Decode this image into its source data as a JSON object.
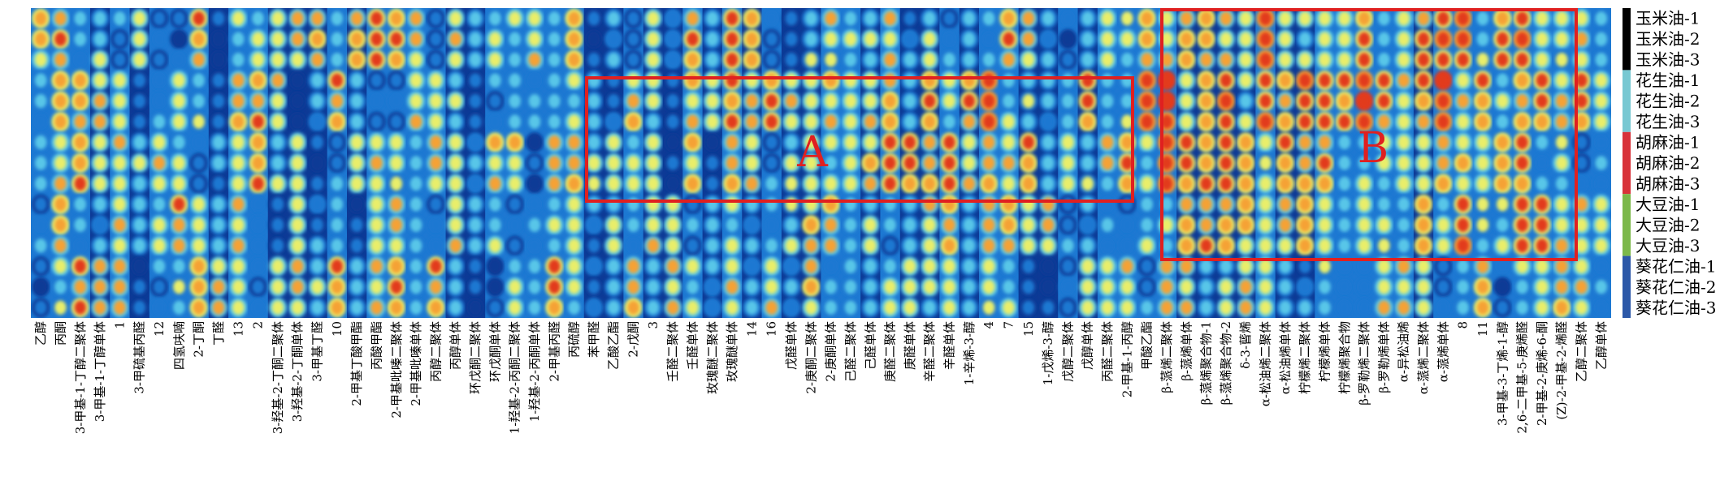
{
  "chart_data": {
    "type": "heatmap",
    "title": "",
    "xlabel": "",
    "ylabel": "",
    "colorscale": [
      "#08124a",
      "#0d3a96",
      "#1e78d2",
      "#58c6e8",
      "#e9ee6a",
      "#f5a234",
      "#e23a1e"
    ],
    "row_labels": [
      "玉米油-1",
      "玉米油-2",
      "玉米油-3",
      "花生油-1",
      "花生油-2",
      "花生油-3",
      "胡麻油-1",
      "胡麻油-2",
      "胡麻油-3",
      "大豆油-1",
      "大豆油-2",
      "大豆油-3",
      "葵花仁油-1",
      "葵花仁油-2",
      "葵花仁油-3"
    ],
    "row_groups": [
      {
        "name": "玉米油",
        "color": "#000000",
        "rows": [
          0,
          2
        ]
      },
      {
        "name": "花生油",
        "color": "#78c8d2",
        "rows": [
          3,
          5
        ]
      },
      {
        "name": "胡麻油",
        "color": "#d8333a",
        "rows": [
          6,
          8
        ]
      },
      {
        "name": "大豆油",
        "color": "#7cb84a",
        "rows": [
          9,
          11
        ]
      },
      {
        "name": "葵花仁油",
        "color": "#2c58a8",
        "rows": [
          12,
          14
        ]
      }
    ],
    "column_labels": [
      "乙醇",
      "丙酮",
      "3-甲基-1-丁醇二聚体",
      "3-甲基-1-丁醇单体",
      "1",
      "3-甲硫基丙醛",
      "12",
      "四氢呋喃",
      "2-丁酮",
      "丁醛",
      "13",
      "2",
      "3-羟基-2-丁酮二聚体",
      "3-羟基-2-丁酮单体",
      "3-甲基丁醛",
      "10",
      "2-甲基丁酸甲酯",
      "丙酸甲酯",
      "2-甲基吡嗪二聚体",
      "2-甲基吡嗪单体",
      "丙醇二聚体",
      "丙醇单体",
      "环戊酮二聚体",
      "环戊酮单体",
      "1-羟基-2-丙酮二聚体",
      "1-羟基-2-丙酮单体",
      "2-甲基丙醛",
      "丙硫醇",
      "苯甲醛",
      "乙酸乙酯",
      "2-戊酮",
      "3",
      "壬醛二聚体",
      "壬醛单体",
      "玫瑰醚二聚体",
      "玫瑰醚单体",
      "14",
      "16",
      "戊醛单体",
      "2-庚酮二聚体",
      "2-庚酮单体",
      "己醛二聚体",
      "己醛单体",
      "庚醛二聚体",
      "庚醛单体",
      "辛醛二聚体",
      "辛醛单体",
      "1-辛烯-3-醇",
      "4",
      "7",
      "15",
      "1-戊烯-3-醇",
      "戊醇二聚体",
      "戊醇单体",
      "丙醛二聚体",
      "2-甲基-1-丙醇",
      "甲酸乙酯",
      "β-蒎烯二聚体",
      "β-蒎烯单体",
      "β-蒎烯聚合物-1",
      "β-蒎烯聚合物-2",
      "δ-3-蒈烯",
      "α-松油烯二聚体",
      "α-松油烯单体",
      "柠檬烯二聚体",
      "柠檬烯单体",
      "柠檬烯聚合物",
      "β-罗勒烯二聚体",
      "β-罗勒烯单体",
      "α-异松油烯",
      "α-蒎烯二聚体",
      "α-蒎烯单体",
      "8",
      "11",
      "3-甲基-3-丁烯-1-醇",
      "2,6-二甲基-5-庚烯醛",
      "2-甲基-2-庚烯-6-酮",
      "(Z)-2-甲基-2-烯醛",
      "乙醇二聚体",
      "乙醇单体"
    ],
    "highlight_regions": [
      {
        "label": "A",
        "color": "#e02020"
      },
      {
        "label": "B",
        "color": "#e02020"
      }
    ],
    "grid": false,
    "legend": "right"
  }
}
